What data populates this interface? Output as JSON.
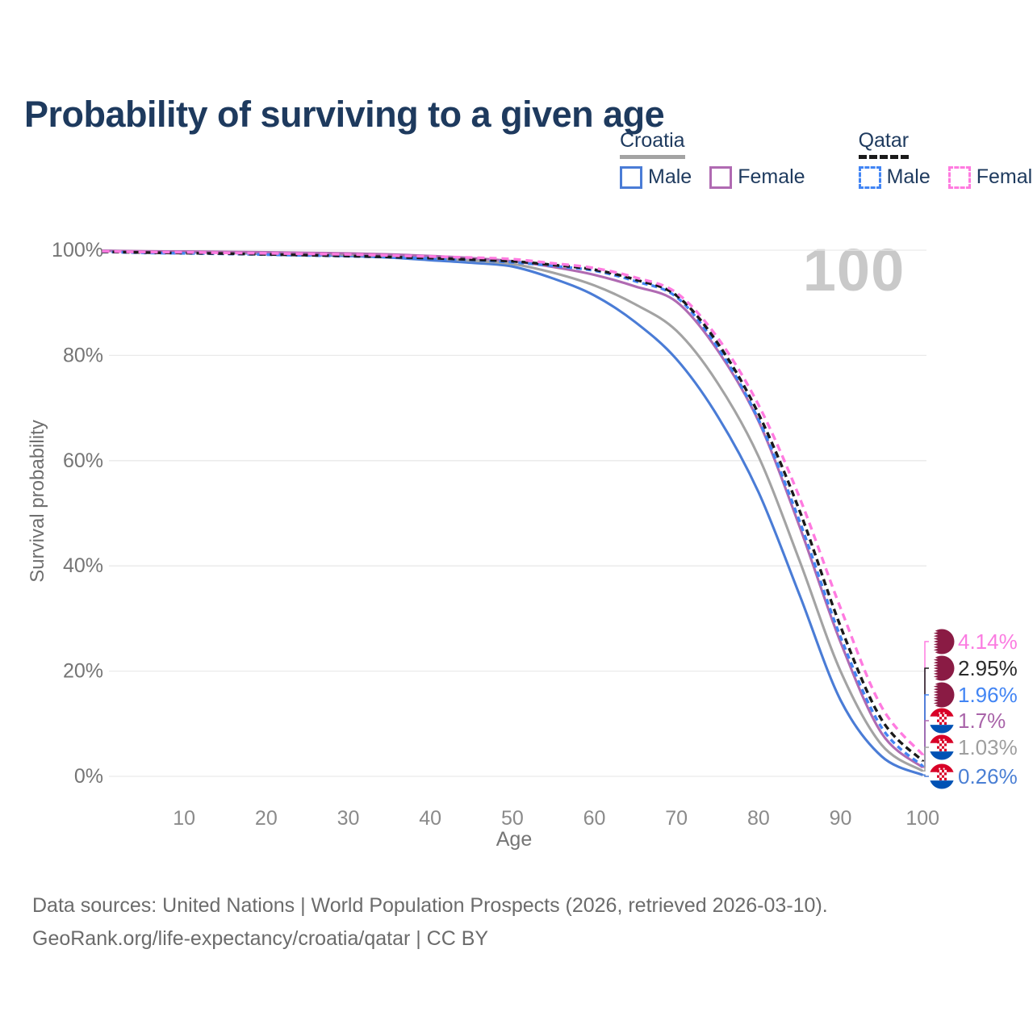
{
  "header": {
    "title": "Probability of surviving to a given age"
  },
  "watermark": "100",
  "legend": {
    "groups": [
      {
        "label": "Croatia",
        "underline_color": "#a3a3a3",
        "underline_style": "solid",
        "items": [
          {
            "label": "Male",
            "color": "#4a7cd6",
            "style": "solid"
          },
          {
            "label": "Female",
            "color": "#b06ab2",
            "style": "solid"
          }
        ]
      },
      {
        "label": "Qatar",
        "underline_color": "#1a1a1a",
        "underline_style": "dashed",
        "items": [
          {
            "label": "Male",
            "color": "#4285f4",
            "style": "dashed"
          },
          {
            "label": "Female",
            "color": "#ff7be0",
            "style": "dashed"
          }
        ]
      }
    ]
  },
  "chart_data": {
    "type": "line",
    "title": "Probability of surviving to a given age",
    "xlabel": "Age",
    "ylabel": "Survival probability",
    "xlim": [
      0,
      100
    ],
    "ylim": [
      0,
      100
    ],
    "grid": "horizontal",
    "legend_position": "top-right",
    "x_ticks": [
      {
        "v": 10,
        "label": "10"
      },
      {
        "v": 20,
        "label": "20"
      },
      {
        "v": 30,
        "label": "30"
      },
      {
        "v": 40,
        "label": "40"
      },
      {
        "v": 50,
        "label": "50"
      },
      {
        "v": 60,
        "label": "60"
      },
      {
        "v": 70,
        "label": "70"
      },
      {
        "v": 80,
        "label": "80"
      },
      {
        "v": 90,
        "label": "90"
      },
      {
        "v": 100,
        "label": "100"
      }
    ],
    "y_ticks": [
      {
        "v": 0,
        "label": "0%"
      },
      {
        "v": 20,
        "label": "20%"
      },
      {
        "v": 40,
        "label": "40%"
      },
      {
        "v": 60,
        "label": "60%"
      },
      {
        "v": 80,
        "label": "80%"
      },
      {
        "v": 100,
        "label": "100%"
      }
    ],
    "ages": [
      0,
      5,
      10,
      15,
      20,
      25,
      30,
      35,
      40,
      45,
      50,
      55,
      60,
      65,
      70,
      75,
      80,
      85,
      90,
      95,
      100
    ],
    "series": [
      {
        "name": "Croatia Male",
        "country": "Croatia",
        "sex": "male",
        "line_style": "solid",
        "color": "#4a7cd6",
        "label_color": "#4a7fd4",
        "flag": "croatia",
        "end_label": "0.26%",
        "end_value": 0.26,
        "values": [
          99.9,
          99.7,
          99.6,
          99.5,
          99.3,
          99.1,
          98.9,
          98.6,
          98.1,
          97.6,
          96.9,
          94.6,
          91.4,
          86.3,
          79.3,
          68.5,
          54.0,
          34.5,
          14.5,
          3.8,
          0.26
        ]
      },
      {
        "name": "Croatia Both sexes",
        "country": "Croatia",
        "sex": "both",
        "line_style": "solid",
        "color": "#a3a3a3",
        "label_color": "#9e9e9e",
        "flag": "croatia",
        "end_label": "1.03%",
        "end_value": 1.03,
        "values": [
          99.9,
          99.75,
          99.7,
          99.6,
          99.45,
          99.3,
          99.15,
          98.9,
          98.5,
          98.0,
          97.4,
          95.7,
          93.3,
          89.7,
          84.7,
          74.8,
          60.8,
          41.0,
          20.0,
          6.0,
          1.03
        ]
      },
      {
        "name": "Croatia Female",
        "country": "Croatia",
        "sex": "female",
        "line_style": "solid",
        "color": "#b06ab2",
        "label_color": "#a964a9",
        "flag": "croatia",
        "end_label": "1.7%",
        "end_value": 1.7,
        "values": [
          99.9,
          99.8,
          99.75,
          99.7,
          99.6,
          99.5,
          99.4,
          99.2,
          98.9,
          98.5,
          97.9,
          96.8,
          95.3,
          93.1,
          90.2,
          81.0,
          67.5,
          47.5,
          25.5,
          8.2,
          1.7
        ]
      },
      {
        "name": "Qatar Male",
        "country": "Qatar",
        "sex": "male",
        "line_style": "dashed",
        "color": "#4285f4",
        "label_color": "#4285f4",
        "flag": "qatar",
        "end_label": "1.96%",
        "end_value": 1.96,
        "values": [
          99.7,
          99.5,
          99.4,
          99.3,
          99.15,
          99.0,
          98.85,
          98.65,
          98.4,
          98.1,
          97.7,
          97.0,
          96.1,
          94.1,
          91.1,
          81.6,
          67.8,
          48.5,
          26.5,
          9.3,
          1.96
        ]
      },
      {
        "name": "Qatar Both sexes",
        "country": "Qatar",
        "sex": "both",
        "line_style": "dashed",
        "color": "#1a1a1a",
        "label_color": "#2b2b2b",
        "flag": "qatar",
        "end_label": "2.95%",
        "end_value": 2.95,
        "values": [
          99.7,
          99.55,
          99.45,
          99.35,
          99.2,
          99.05,
          98.9,
          98.7,
          98.5,
          98.2,
          97.9,
          97.2,
          96.3,
          94.4,
          91.4,
          82.4,
          68.9,
          50.5,
          28.5,
          10.8,
          2.95
        ]
      },
      {
        "name": "Qatar Female",
        "country": "Qatar",
        "sex": "female",
        "line_style": "dashed",
        "color": "#ff7be0",
        "label_color": "#fb7ce1",
        "flag": "qatar",
        "end_label": "4.14%",
        "end_value": 4.14,
        "values": [
          99.8,
          99.65,
          99.6,
          99.5,
          99.4,
          99.3,
          99.2,
          99.0,
          98.8,
          98.6,
          98.3,
          97.5,
          96.6,
          94.8,
          91.9,
          83.4,
          70.6,
          53.0,
          32.0,
          13.2,
          4.14
        ]
      }
    ],
    "flag_colors": {
      "qatar_maroon": "#8a1b44",
      "croatia_red": "#d80027",
      "croatia_blue": "#0052b4",
      "white": "#ffffff"
    }
  },
  "footer": {
    "line1": "Data sources: United Nations | World Population Prospects (2026, retrieved 2026-03-10).",
    "line2": "GeoRank.org/life-expectancy/croatia/qatar | CC BY"
  }
}
